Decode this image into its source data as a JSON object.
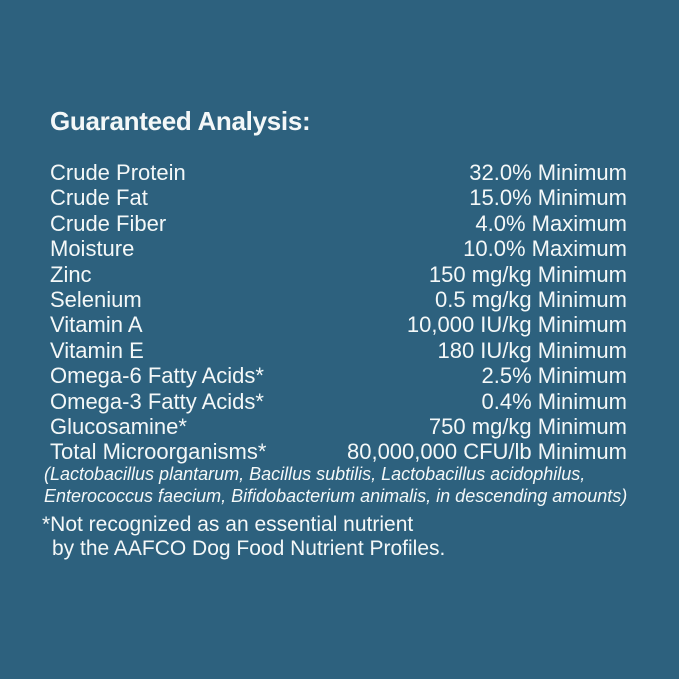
{
  "page": {
    "background_color": "#2D617E",
    "text_color": "#F4F8F8"
  },
  "header": {
    "title": "Guaranteed Analysis:"
  },
  "analysis_table": {
    "rows": [
      {
        "nutrient": "Crude Protein",
        "value": "32.0% Minimum"
      },
      {
        "nutrient": "Crude Fat",
        "value": "15.0% Minimum"
      },
      {
        "nutrient": "Crude Fiber",
        "value": "4.0% Maximum"
      },
      {
        "nutrient": "Moisture",
        "value": "10.0% Maximum"
      },
      {
        "nutrient": "Zinc",
        "value": "150 mg/kg Minimum"
      },
      {
        "nutrient": "Selenium",
        "value": "0.5 mg/kg Minimum"
      },
      {
        "nutrient": "Vitamin A",
        "value": "10,000 IU/kg Minimum"
      },
      {
        "nutrient": "Vitamin E",
        "value": "180 IU/kg Minimum"
      },
      {
        "nutrient": "Omega-6 Fatty Acids*",
        "value": "2.5% Minimum"
      },
      {
        "nutrient": "Omega-3 Fatty Acids*",
        "value": "0.4% Minimum"
      },
      {
        "nutrient": "Glucosamine*",
        "value": "750 mg/kg Minimum"
      },
      {
        "nutrient": "Total Microorganisms*",
        "value": "80,000,000 CFU/lb Minimum"
      }
    ]
  },
  "microorganisms_note": {
    "line1": "(Lactobacillus plantarum, Bacillus subtilis, Lactobacillus acidophilus,",
    "line2": "Enterococcus faecium, Bifidobacterium animalis, in descending amounts)"
  },
  "footnote": {
    "line1": "*Not recognized as an essential nutrient",
    "line2": "by the AAFCO Dog Food Nutrient Profiles."
  }
}
